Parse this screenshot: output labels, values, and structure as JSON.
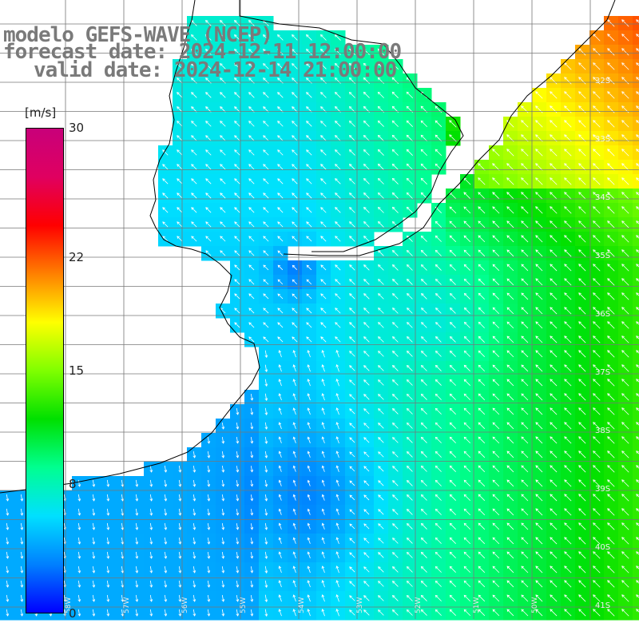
{
  "title": {
    "line1": "modelo GEFS-WAVE (NCEP)",
    "line2": "forecast date: 2024-12-11 12:00:00",
    "line3": "valid date: 2024-12-14 21:00:00"
  },
  "colorbar": {
    "unit": "[m/s]",
    "ticks": [
      "30",
      "22",
      "15",
      "8",
      "0"
    ],
    "tick_values": [
      30,
      22,
      15,
      8,
      0
    ],
    "range": [
      0,
      30
    ],
    "colors": [
      "#0000ff",
      "#0080ff",
      "#00e0ff",
      "#00ff90",
      "#00e000",
      "#80ff00",
      "#ffff00",
      "#ff8000",
      "#ff0000",
      "#e00060",
      "#c8007a"
    ]
  },
  "map": {
    "lat_labels": [
      "32S",
      "33S",
      "34S",
      "35S",
      "36S",
      "37S",
      "38S",
      "39S",
      "40S",
      "41S"
    ],
    "lon_labels": [
      "58W",
      "57W",
      "56W",
      "55W",
      "54W",
      "53W",
      "52W",
      "51W",
      "50W"
    ],
    "colors": {
      "land": "#ffffff",
      "grid": "#777777",
      "coast": "#000000",
      "arrow": "#ffffff"
    }
  }
}
